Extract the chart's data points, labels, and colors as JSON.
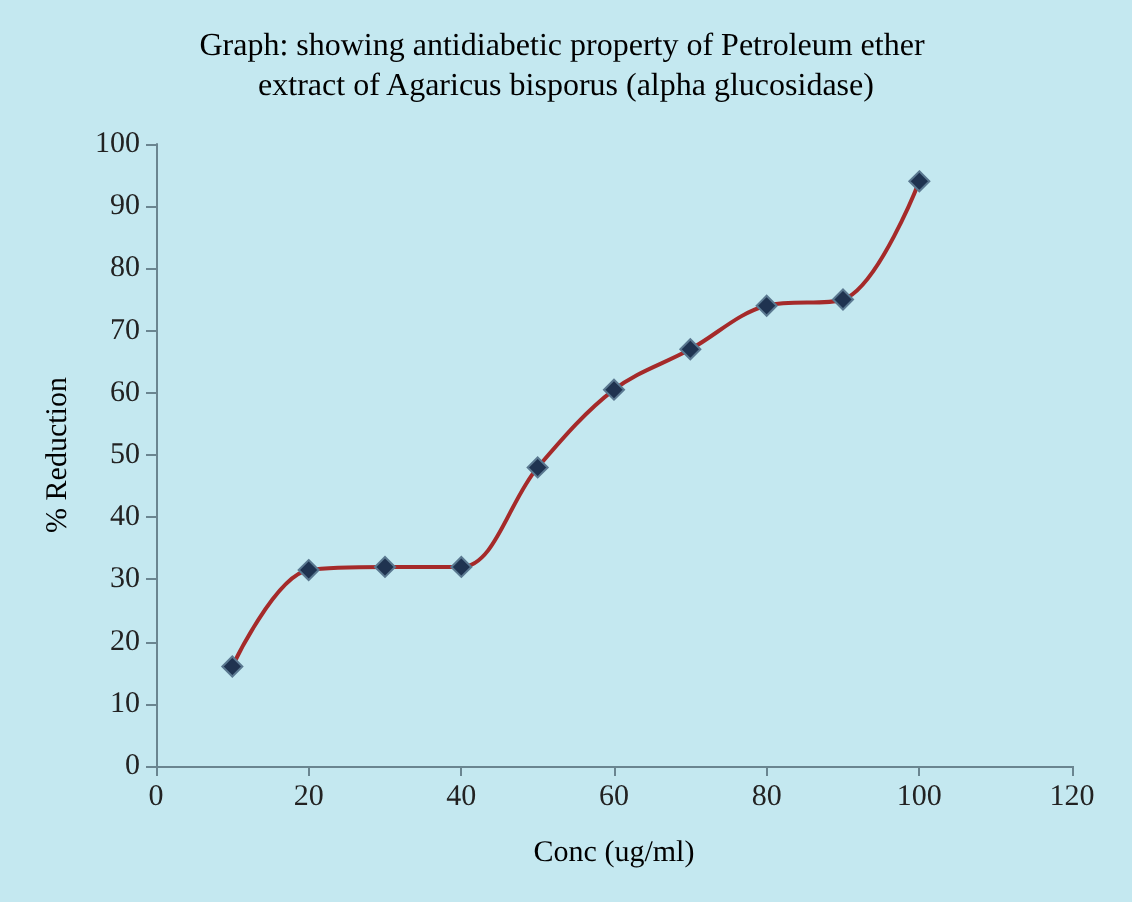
{
  "chart_data": {
    "type": "line",
    "title": "Graph: showing antidiabetic property of Petroleum ether extract of Agaricus bisporus (alpha glucosidase)",
    "xlabel": "Conc (ug/ml)",
    "ylabel": "% Reduction",
    "x": [
      10,
      20,
      30,
      40,
      50,
      60,
      70,
      80,
      90,
      100
    ],
    "series": [
      {
        "color": "#a52a2a",
        "values": [
          16,
          31.5,
          32,
          32,
          48,
          60.5,
          67,
          74,
          75,
          94
        ]
      }
    ],
    "xlim": [
      0,
      120
    ],
    "xticks": [
      0,
      20,
      40,
      60,
      80,
      100,
      120
    ],
    "ylim": [
      0,
      100
    ],
    "yticks": [
      0,
      10,
      20,
      30,
      40,
      50,
      60,
      70,
      80,
      90,
      100
    ],
    "grid": false,
    "marker": "diamond",
    "line_style": "solid"
  }
}
